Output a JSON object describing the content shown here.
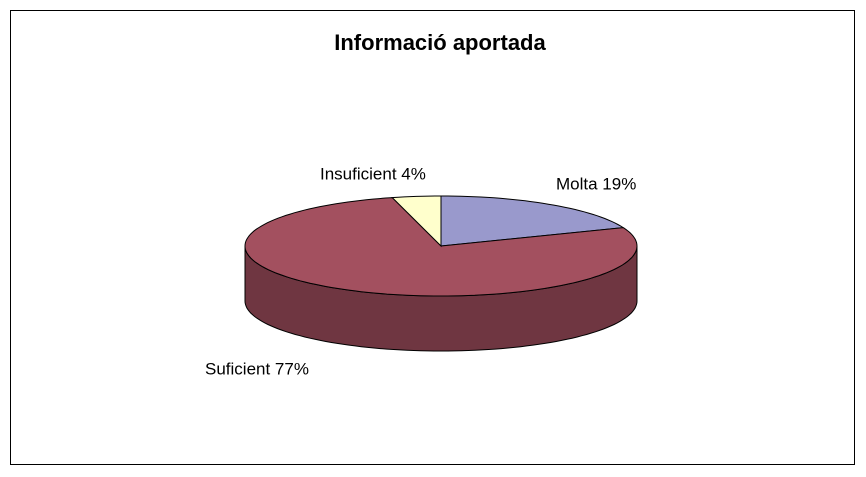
{
  "chart_data": {
    "type": "pie",
    "title": "Informació aportada",
    "categories": [
      "Molta",
      "Suficient",
      "Insuficient"
    ],
    "values": [
      19,
      77,
      4
    ],
    "value_labels": [
      "Molta 19%",
      "Suficient 77%",
      "Insuficient 4%"
    ],
    "colors": [
      "#9999cc",
      "#a3505f",
      "#ffffcc"
    ],
    "three_d": true
  }
}
